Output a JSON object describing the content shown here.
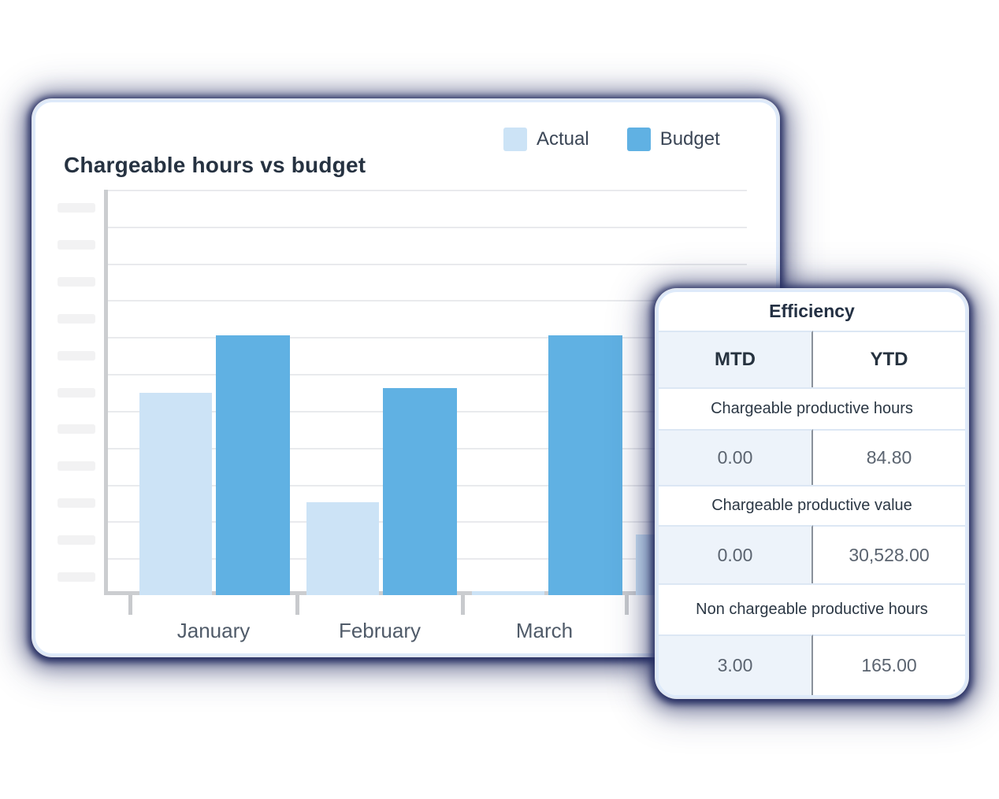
{
  "chart_data": {
    "type": "bar",
    "title": "Chargeable hours vs budget",
    "categories": [
      "January",
      "February",
      "March",
      ""
    ],
    "series": [
      {
        "name": "Actual",
        "color": "#CCE3F6",
        "values": [
          50,
          23,
          1,
          15
        ]
      },
      {
        "name": "Budget",
        "color": "#60B1E3",
        "values": [
          64,
          51,
          64,
          null
        ]
      }
    ],
    "xlabel": "",
    "ylabel": "",
    "ylim": [
      0,
      100
    ],
    "unit": "percent of plot height (y-axis tick labels are blank skeleton placeholders)",
    "grid": true,
    "legend_position": "top-right",
    "note": "Fourth category group is partially hidden behind the Efficiency panel; only part of its Actual bar is visible"
  },
  "efficiency_table": {
    "title": "Efficiency",
    "columns": {
      "mtd": "MTD",
      "ytd": "YTD"
    },
    "rows": [
      {
        "label": "Chargeable productive hours",
        "mtd": "0.00",
        "ytd": "84.80"
      },
      {
        "label": "Chargeable productive value",
        "mtd": "0.00",
        "ytd": "30,528.00"
      },
      {
        "label": "Non chargeable productive hours",
        "mtd": "3.00",
        "ytd": "165.00"
      }
    ]
  },
  "colors": {
    "actual": "#CCE3F6",
    "budget": "#60B1E3",
    "card_glow": "#262E62",
    "card_border": "#DEEAFA",
    "mtd_column_bg": "#EDF3FA",
    "axis": "#CBCDD0",
    "gridline": "#E9EAED",
    "heading_text": "#263241",
    "value_text": "#5B6470"
  }
}
